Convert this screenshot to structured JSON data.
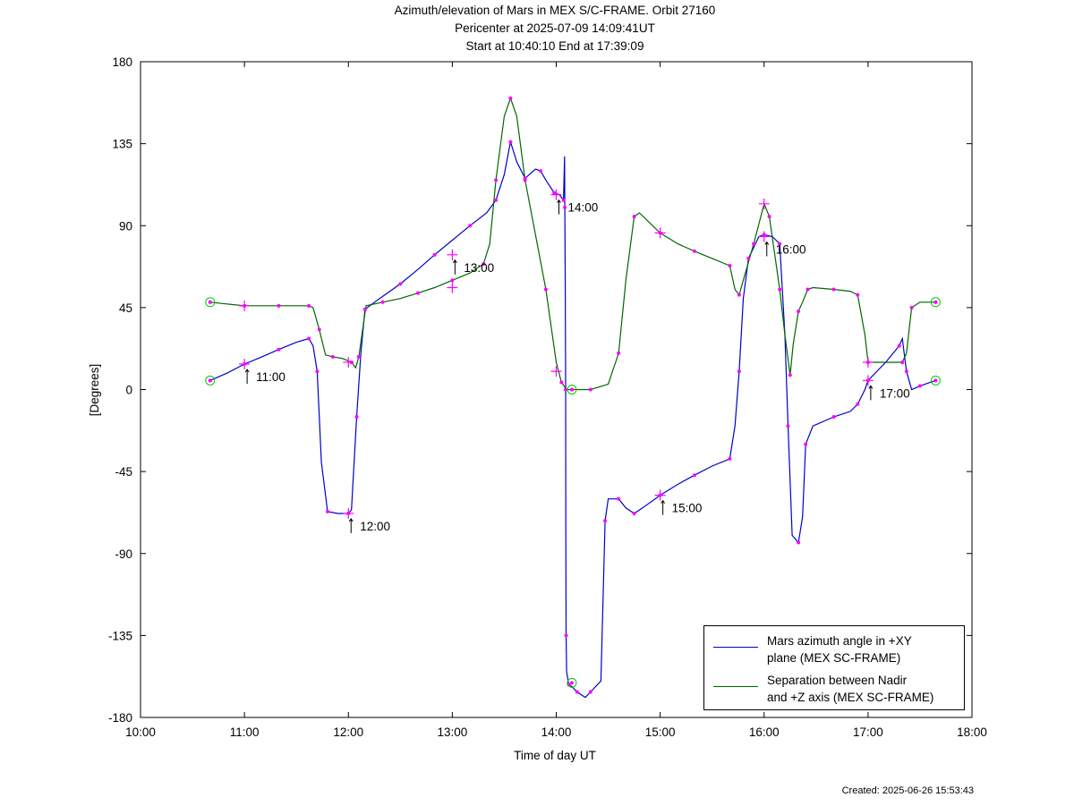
{
  "header": {
    "title_line1": "Azimuth/elevation of Mars in MEX S/C-FRAME.  Orbit 27160",
    "title_line2": "Pericenter at 2025-07-09 14:09:41UT",
    "title_line3": "Start at 10:40:10 End at 17:39:09"
  },
  "footer": {
    "created": "Created: 2025-06-26 15:53:43"
  },
  "chart_data": {
    "type": "line",
    "xlabel": "Time of day UT",
    "ylabel": "[Degrees]",
    "xlim": [
      10,
      18
    ],
    "ylim": [
      -180,
      180
    ],
    "x_ticks": [
      10,
      11,
      12,
      13,
      14,
      15,
      16,
      17,
      18
    ],
    "x_tick_labels": [
      "10:00",
      "11:00",
      "12:00",
      "13:00",
      "14:00",
      "15:00",
      "16:00",
      "17:00",
      "18:00"
    ],
    "y_ticks": [
      180,
      135,
      90,
      45,
      0,
      -45,
      -90,
      -135,
      -180
    ],
    "y_tick_labels": [
      "180",
      "135",
      "90",
      "45",
      "0",
      "-45",
      "-90",
      "-135",
      "-180"
    ],
    "grid": false,
    "legend_position": "bottom-right",
    "series": [
      {
        "name": "Mars azimuth angle in +XY plane (MEX SC-FRAME)",
        "legend_line1": "Mars azimuth angle in +XY",
        "legend_line2": "plane (MEX SC-FRAME)",
        "color": "#0000cc",
        "x": [
          10.67,
          10.83,
          11.0,
          11.17,
          11.33,
          11.5,
          11.62,
          11.66,
          11.7,
          11.74,
          11.8,
          11.9,
          12.0,
          12.03,
          12.08,
          12.12,
          12.16,
          12.3,
          12.5,
          12.67,
          12.83,
          13.0,
          13.17,
          13.33,
          13.42,
          13.5,
          13.56,
          13.62,
          13.7,
          13.8,
          13.85,
          13.9,
          13.98,
          14.03,
          14.07,
          14.08,
          14.083,
          14.087,
          14.09,
          14.092,
          14.095,
          14.1,
          14.12,
          14.15,
          14.2,
          14.28,
          14.33,
          14.43,
          14.47,
          14.5,
          14.6,
          14.67,
          14.75,
          14.83,
          15.0,
          15.17,
          15.33,
          15.5,
          15.67,
          15.72,
          15.76,
          15.8,
          15.85,
          15.95,
          16.0,
          16.08,
          16.15,
          16.2,
          16.23,
          16.27,
          16.33,
          16.37,
          16.4,
          16.47,
          16.67,
          16.83,
          16.9,
          16.97,
          17.0,
          17.17,
          17.3,
          17.33,
          17.37,
          17.42,
          17.5,
          17.65
        ],
        "y": [
          5,
          9,
          14,
          18,
          22,
          26,
          28,
          24,
          10,
          -40,
          -67,
          -68,
          -68,
          -66,
          -15,
          20,
          44,
          50,
          58,
          66,
          74,
          82,
          90,
          97,
          104,
          118,
          136,
          125,
          116,
          121,
          120,
          115,
          108,
          107,
          104,
          128,
          100,
          55,
          0,
          -80,
          -135,
          -155,
          -162,
          -163,
          -166,
          -169,
          -166,
          -160,
          -72,
          -60,
          -60,
          -65,
          -68,
          -65,
          -58,
          -52,
          -47,
          -42,
          -38,
          -20,
          10,
          50,
          72,
          84,
          85,
          84,
          80,
          30,
          -20,
          -80,
          -84,
          -70,
          -30,
          -20,
          -15,
          -12,
          -8,
          0,
          5,
          15,
          24,
          28,
          10,
          0,
          2,
          5
        ]
      },
      {
        "name": "Separation between Nadir and +Z axis (MEX SC-FRAME)",
        "legend_line1": "Separation between Nadir",
        "legend_line2": "and +Z axis (MEX SC-FRAME)",
        "color": "#006600",
        "x": [
          10.67,
          10.83,
          11.0,
          11.17,
          11.33,
          11.5,
          11.62,
          11.66,
          11.72,
          11.78,
          11.85,
          11.95,
          12.03,
          12.07,
          12.1,
          12.17,
          12.33,
          12.5,
          12.67,
          12.83,
          13.0,
          13.17,
          13.3,
          13.36,
          13.42,
          13.5,
          13.56,
          13.62,
          13.7,
          13.8,
          13.9,
          14.0,
          14.05,
          14.1,
          14.15,
          14.25,
          14.33,
          14.5,
          14.6,
          14.67,
          14.75,
          14.8,
          15.0,
          15.17,
          15.33,
          15.5,
          15.67,
          15.72,
          15.76,
          15.8,
          15.9,
          16.0,
          16.05,
          16.1,
          16.15,
          16.2,
          16.25,
          16.28,
          16.33,
          16.37,
          16.42,
          16.47,
          16.67,
          16.83,
          16.9,
          16.97,
          17.0,
          17.17,
          17.33,
          17.37,
          17.42,
          17.5,
          17.65
        ],
        "y": [
          48,
          47,
          46,
          46,
          46,
          46,
          46,
          45,
          33,
          19,
          18,
          17,
          15,
          12,
          18,
          46,
          48,
          50,
          53,
          56,
          60,
          64,
          69,
          80,
          115,
          150,
          160,
          150,
          115,
          85,
          55,
          15,
          4,
          0,
          0,
          0,
          0,
          3,
          20,
          60,
          95,
          97,
          86,
          80,
          76,
          72,
          68,
          55,
          52,
          60,
          80,
          102,
          95,
          75,
          55,
          30,
          8,
          25,
          43,
          48,
          55,
          56,
          55,
          54,
          52,
          30,
          15,
          15,
          15,
          20,
          45,
          48,
          48
        ]
      }
    ],
    "markers": [
      {
        "x": 11.0,
        "y": 14,
        "label": "11:00",
        "side": "below"
      },
      {
        "x": 12.0,
        "y": -68,
        "label": "12:00",
        "side": "below"
      },
      {
        "x": 13.0,
        "y": 74,
        "label": "13:00",
        "side": "below"
      },
      {
        "x": 14.0,
        "y": 107,
        "label": "14:00",
        "side": "below"
      },
      {
        "x": 15.0,
        "y": -58,
        "label": "15:00",
        "side": "below"
      },
      {
        "x": 16.0,
        "y": 84,
        "label": "16:00",
        "side": "below"
      },
      {
        "x": 17.0,
        "y": 5,
        "label": "17:00",
        "side": "below"
      }
    ],
    "plus_markers": [
      {
        "x": 11.0,
        "y": 46
      },
      {
        "x": 12.0,
        "y": 15
      },
      {
        "x": 13.0,
        "y": 56
      },
      {
        "x": 14.0,
        "y": 10
      },
      {
        "x": 15.0,
        "y": 86
      },
      {
        "x": 16.0,
        "y": 102
      },
      {
        "x": 17.0,
        "y": 15
      }
    ],
    "circle_markers": [
      {
        "x": 10.67,
        "y": 48
      },
      {
        "x": 10.67,
        "y": 5
      },
      {
        "x": 14.15,
        "y": 0
      },
      {
        "x": 14.15,
        "y": -161
      },
      {
        "x": 17.65,
        "y": 48
      },
      {
        "x": 17.65,
        "y": 5
      }
    ],
    "dot_color": "#ff00ff",
    "circle_color": "#00cc00"
  }
}
